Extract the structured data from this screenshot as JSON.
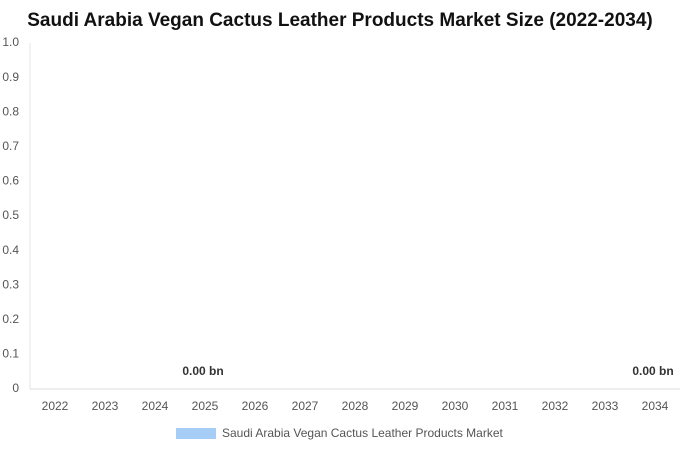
{
  "chart_data": {
    "type": "bar",
    "title": "Saudi Arabia Vegan Cactus Leather Products Market Size (2022-2034)",
    "categories": [
      "2022",
      "2023",
      "2024",
      "2025",
      "2026",
      "2027",
      "2028",
      "2029",
      "2030",
      "2031",
      "2032",
      "2033",
      "2034"
    ],
    "series": [
      {
        "name": "Saudi Arabia Vegan Cactus Leather Products Market",
        "color": "#a6cdf5",
        "values": [
          0,
          0,
          0,
          0,
          0,
          0,
          0,
          0,
          0,
          0,
          0,
          0,
          0
        ],
        "value_labels": [
          null,
          null,
          null,
          "0.00 bn",
          null,
          null,
          null,
          null,
          null,
          null,
          null,
          null,
          "0.00 bn"
        ]
      }
    ],
    "ylim": [
      0,
      1
    ],
    "yticks": [
      0,
      0.1,
      0.2,
      0.3,
      0.4,
      0.5,
      0.6,
      0.7,
      0.8,
      0.9,
      {
        "value": 1,
        "label": "1.0"
      }
    ],
    "grid": false,
    "legend": "bottom"
  }
}
